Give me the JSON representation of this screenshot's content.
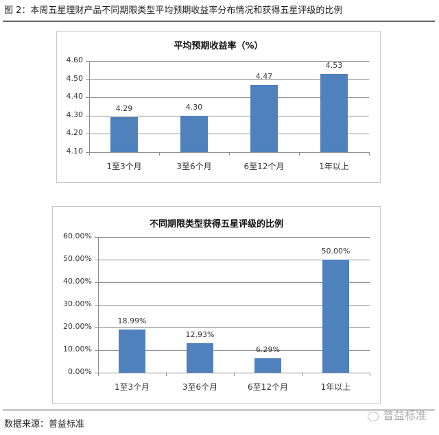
{
  "figure": {
    "title": "图 2：本周五星理财产品不同期限类型平均预期收益率分布情况和获得五星评级的比例",
    "source": "数据来源：普益标准",
    "watermark": "普益标准"
  },
  "colors": {
    "bar": "#4f81bd",
    "grid": "#8c8c8c",
    "border": "#c8c8c8"
  },
  "chart_data": [
    {
      "type": "bar",
      "title": "平均预期收益率（%）",
      "categories": [
        "1至3个月",
        "3至6个月",
        "6至12个月",
        "1年以上"
      ],
      "values": [
        4.29,
        4.3,
        4.47,
        4.53
      ],
      "value_labels": [
        "4.29",
        "4.30",
        "4.47",
        "4.53"
      ],
      "yticks": [
        "4.60",
        "4.50",
        "4.40",
        "4.30",
        "4.20",
        "4.10"
      ],
      "ylim": [
        4.1,
        4.6
      ],
      "xlabel": "",
      "ylabel": "",
      "grid": true,
      "legend": "none"
    },
    {
      "type": "bar",
      "title": "不同期限类型获得五星评级的比例",
      "categories": [
        "1至3个月",
        "3至6个月",
        "6至12个月",
        "1年以上"
      ],
      "values": [
        18.99,
        12.93,
        6.29,
        50.0
      ],
      "value_labels": [
        "18.99%",
        "12.93%",
        "6.29%",
        "50.00%"
      ],
      "yticks": [
        "60.00%",
        "50.00%",
        "40.00%",
        "30.00%",
        "20.00%",
        "10.00%",
        "0.00%"
      ],
      "ylim": [
        0,
        60
      ],
      "xlabel": "",
      "ylabel": "",
      "grid": true,
      "legend": "none"
    }
  ]
}
